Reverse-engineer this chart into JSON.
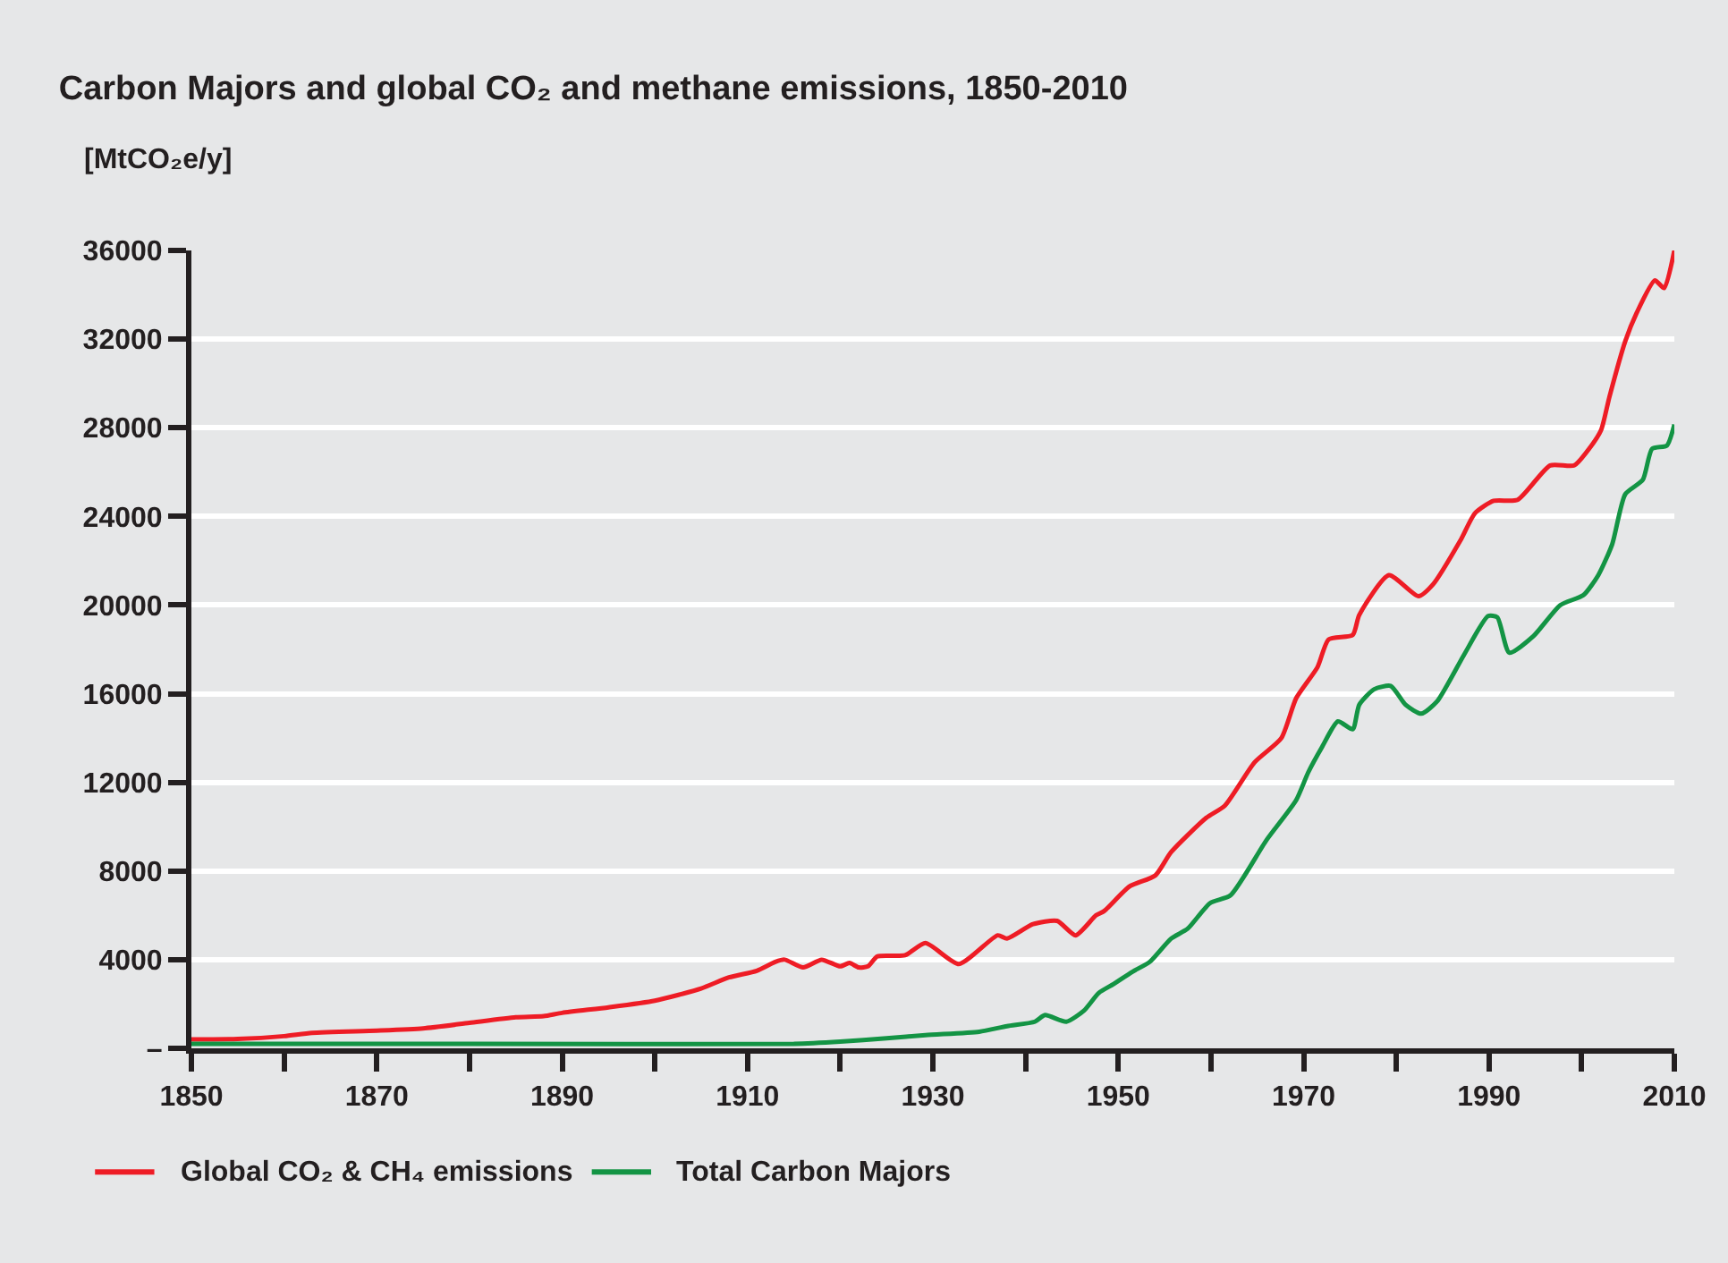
{
  "chart_data": {
    "type": "line",
    "title": "Carbon Majors and global CO₂ and methane emissions, 1850-2010",
    "ylabel": "[MtCO₂e/y]",
    "xlim": [
      1850,
      2010
    ],
    "xticks": [
      1850,
      {
        "value": 1860,
        "label": null
      },
      1870,
      {
        "value": 1880,
        "label": null
      },
      1890,
      {
        "value": 1900,
        "label": null
      },
      1910,
      {
        "value": 1920,
        "label": null
      },
      1930,
      {
        "value": 1940,
        "label": null
      },
      1950,
      {
        "value": 1960,
        "label": null
      },
      1970,
      {
        "value": 1980,
        "label": null
      },
      1990,
      {
        "value": 2000,
        "label": null
      },
      2010
    ],
    "ylim": [
      0,
      36000
    ],
    "yticks": [
      {
        "value": 0,
        "label": "–"
      },
      4000,
      8000,
      12000,
      16000,
      20000,
      24000,
      28000,
      32000,
      36000
    ],
    "grid": "y",
    "legend": "bottom",
    "line_style": "solid",
    "marker": "none",
    "series": [
      {
        "name": "Global CO₂ & CH₄ emissions",
        "color": "#ee1c25",
        "x": [
          1850,
          1855,
          1860,
          1863,
          1870,
          1875,
          1880,
          1885,
          1888,
          1890,
          1895,
          1900,
          1905,
          1908,
          1911,
          1913,
          1914,
          1916,
          1918,
          1920,
          1921,
          1922,
          1923,
          1924,
          1927,
          1929.2,
          1932.8,
          1937,
          1938,
          1940.8,
          1943.4,
          1945.4,
          1947.6,
          1948.5,
          1951.2,
          1954,
          1955.7,
          1959.5,
          1961.5,
          1964.7,
          1967.6,
          1969.2,
          1971.5,
          1972.7,
          1975.3,
          1976,
          1979.2,
          1982.4,
          1984,
          1986.9,
          1988.5,
          1990.5,
          1993.1,
          1996.6,
          1999.2,
          2000.8,
          2002.1,
          2003,
          2004.7,
          2005.9,
          2007.9,
          2008.9,
          2010
        ],
        "values": [
          400,
          420,
          550,
          700,
          800,
          900,
          1150,
          1400,
          1450,
          1600,
          1850,
          2150,
          2700,
          3200,
          3500,
          3900,
          4000,
          3650,
          4000,
          3700,
          3850,
          3650,
          3700,
          4150,
          4200,
          4750,
          3800,
          5100,
          4950,
          5600,
          5750,
          5100,
          6000,
          6200,
          7300,
          7800,
          8850,
          10400,
          10950,
          12900,
          14000,
          15800,
          17200,
          18450,
          18650,
          19550,
          21350,
          20400,
          20950,
          22900,
          24150,
          24700,
          24750,
          26300,
          26300,
          27050,
          27900,
          29400,
          31900,
          33150,
          34650,
          34300,
          36000
        ]
      },
      {
        "name": "Total Carbon Majors",
        "color": "#139444",
        "x": [
          1850,
          1880,
          1915,
          1920,
          1925,
          1929.2,
          1935,
          1938,
          1941,
          1942.1,
          1944.4,
          1946.3,
          1947.9,
          1949.5,
          1951.5,
          1953.4,
          1955.7,
          1957.5,
          1959.9,
          1962.1,
          1966,
          1969.2,
          1970.5,
          1972,
          1973.7,
          1975.3,
          1976,
          1977.6,
          1979.4,
          1981,
          1982.7,
          1984.4,
          1987.3,
          1989.9,
          1990.9,
          1992.2,
          1994.8,
          1997.7,
          2000.2,
          2001.8,
          2003.3,
          2004.7,
          2006.6,
          2007.6,
          2009.2,
          2010
        ],
        "values": [
          200,
          200,
          200,
          300,
          450,
          600,
          750,
          1000,
          1200,
          1500,
          1200,
          1700,
          2500,
          2900,
          3450,
          3900,
          4950,
          5400,
          6550,
          6900,
          9400,
          11200,
          12450,
          13600,
          14750,
          14400,
          15500,
          16200,
          16350,
          15500,
          15100,
          15650,
          17750,
          19500,
          19450,
          17850,
          18600,
          20000,
          20450,
          21350,
          22750,
          25000,
          25650,
          27050,
          27200,
          28150
        ]
      }
    ]
  }
}
